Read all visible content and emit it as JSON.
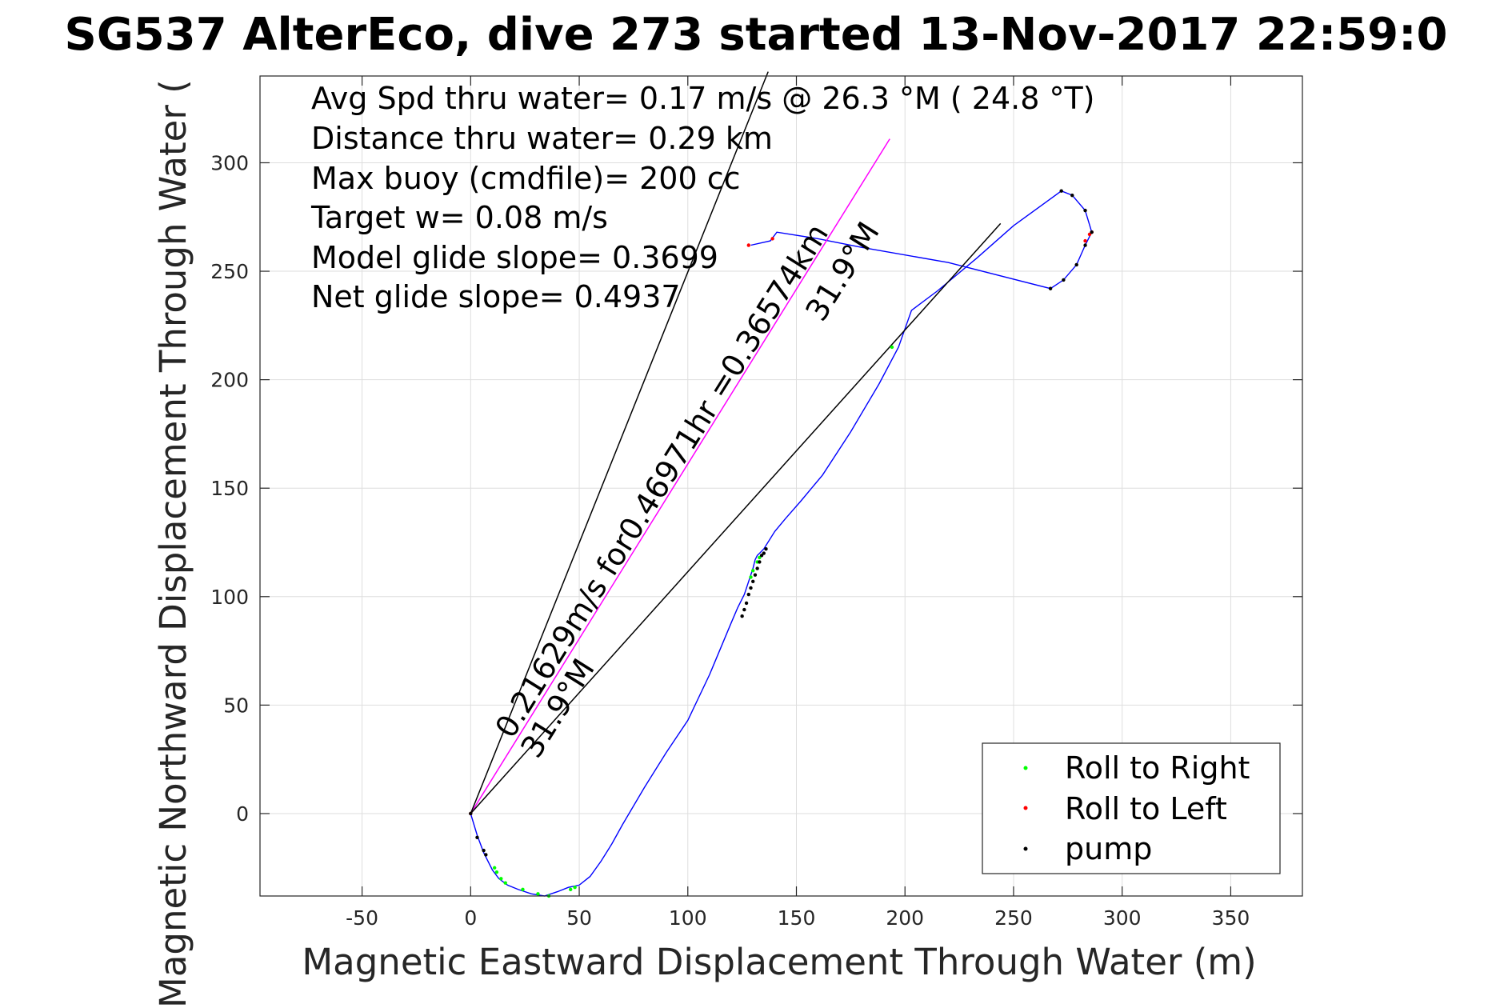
{
  "chart_data": {
    "type": "line",
    "title": "SG537 AlterEco, dive 273 started 13-Nov-2017 22:59:0",
    "xlabel": "Magnetic Eastward Displacement Through Water (m)",
    "ylabel": "Magnetic Northward Displacement Through Water (",
    "xlim": [
      -97,
      383
    ],
    "ylim": [
      -38,
      340
    ],
    "xticks": [
      -50,
      0,
      50,
      100,
      150,
      200,
      250,
      300,
      350
    ],
    "yticks": [
      0,
      50,
      100,
      150,
      200,
      250,
      300
    ],
    "grid": true,
    "legend_position": "bottom-right",
    "info_lines": [
      "Avg Spd thru water=  0.17 m/s @  26.3 °M ( 24.8 °T)",
      "Distance thru water=  0.29 km",
      "Max buoy (cmdfile)= 200 cc",
      "Target w= 0.08 m/s",
      "Model glide slope= 0.3699",
      "Net glide slope= 0.4937"
    ],
    "annotations": [
      "0.21629m/s for0.46971hr =0.36574km",
      "31.9°M",
      "31.9°M"
    ],
    "legend": [
      {
        "label": "Roll to Right",
        "color": "#00ff00"
      },
      {
        "label": "Roll to Left",
        "color": "#ff0000"
      },
      {
        "label": "pump",
        "color": "#000000"
      }
    ],
    "series": [
      {
        "color": "#0000ff",
        "x": [
          0,
          3,
          6,
          10,
          13,
          17,
          22,
          28,
          34,
          40,
          45,
          50,
          55,
          60,
          65,
          70,
          80,
          90,
          100,
          110,
          120,
          123,
          126,
          128,
          130,
          131,
          132,
          133,
          135,
          140,
          145,
          152,
          162,
          175,
          188,
          197,
          203,
          215,
          233,
          250,
          272,
          277,
          283,
          286,
          283,
          279,
          273,
          267,
          220,
          180,
          160,
          141,
          138,
          129
        ],
        "y": [
          0,
          -10,
          -18,
          -26,
          -30,
          -33,
          -35,
          -37,
          -38,
          -36,
          -34,
          -33,
          -29,
          -22,
          -14,
          -5,
          12,
          28,
          43,
          64,
          88,
          95,
          101,
          107,
          113,
          117,
          119,
          120,
          122,
          130,
          136,
          144,
          156,
          176,
          198,
          215,
          232,
          241,
          256,
          271,
          287,
          285,
          278,
          268,
          262,
          253,
          246,
          242,
          254,
          261,
          265,
          268,
          264,
          262
        ]
      },
      {
        "color": "#ff00ff",
        "x": [
          0,
          193
        ],
        "y": [
          0,
          311
        ]
      },
      {
        "color": "#000000",
        "x": [
          0,
          137
        ],
        "y": [
          0,
          342
        ]
      },
      {
        "color": "#000000",
        "x": [
          0,
          244
        ],
        "y": [
          0,
          272
        ]
      }
    ],
    "markers": {
      "roll_right": {
        "color": "#00ff00",
        "x": [
          11,
          12,
          14,
          16,
          24,
          31,
          36,
          46,
          48,
          129,
          130,
          132,
          133,
          194
        ],
        "y": [
          -25,
          -27,
          -30,
          -32,
          -35,
          -37,
          -38,
          -35,
          -34,
          109,
          112,
          116,
          118,
          215
        ]
      },
      "roll_left": {
        "color": "#ff0000",
        "x": [
          0,
          128,
          139,
          286,
          285,
          283
        ],
        "y": [
          0,
          262,
          265,
          268,
          267,
          264
        ]
      },
      "pump": {
        "color": "#000000",
        "x": [
          0,
          3,
          6,
          7,
          125,
          126,
          127,
          128,
          129,
          130,
          131,
          132,
          133,
          134,
          135,
          136,
          272,
          277,
          283,
          286,
          283,
          279,
          273,
          267
        ],
        "y": [
          0,
          -11,
          -17,
          -19,
          91,
          94,
          97,
          101,
          104,
          107,
          110,
          113,
          116,
          119,
          120,
          122,
          287,
          285,
          278,
          268,
          262,
          253,
          246,
          242
        ]
      }
    }
  }
}
